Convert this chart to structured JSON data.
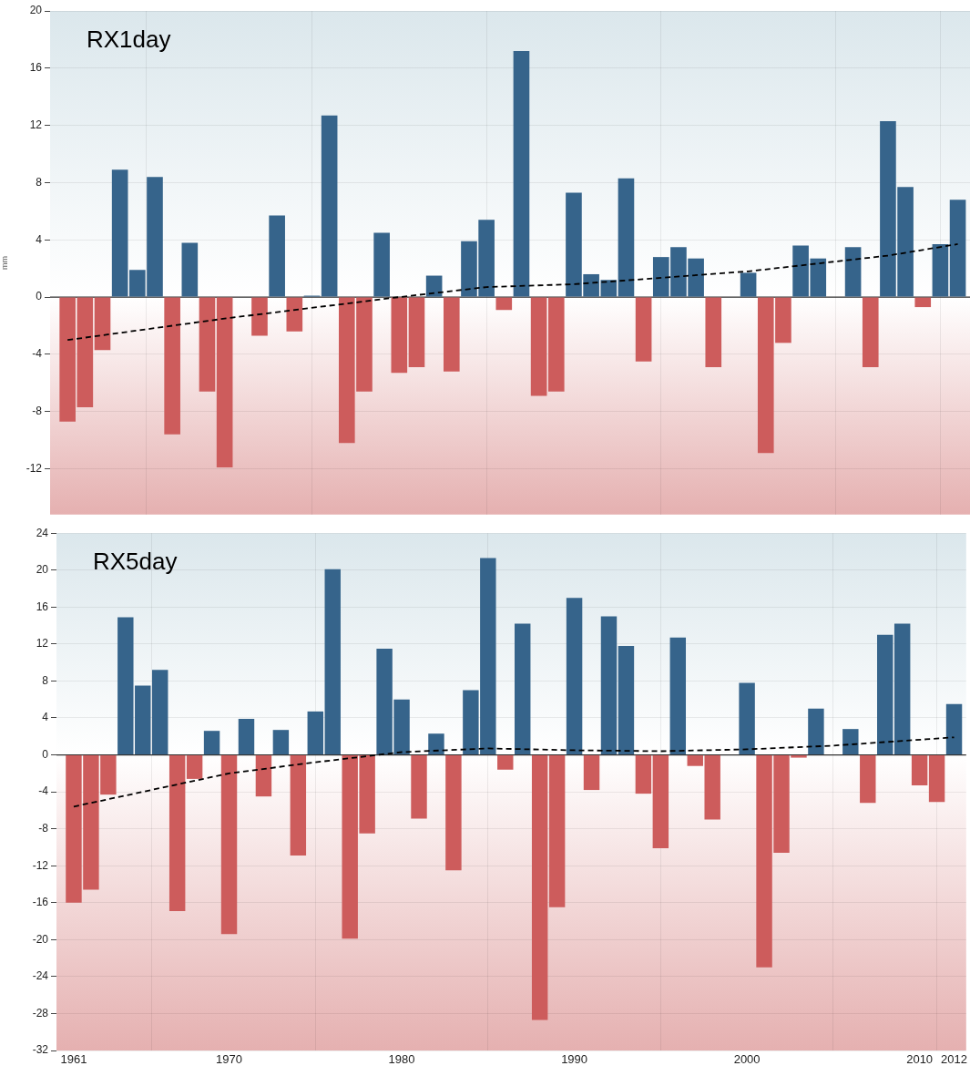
{
  "chart_data": [
    {
      "type": "bar",
      "title": "RX1day",
      "ylabel": "mm",
      "x": [
        1961,
        1962,
        1963,
        1964,
        1965,
        1966,
        1967,
        1968,
        1969,
        1970,
        1971,
        1972,
        1973,
        1974,
        1975,
        1976,
        1977,
        1978,
        1979,
        1980,
        1981,
        1982,
        1983,
        1984,
        1985,
        1986,
        1987,
        1988,
        1989,
        1990,
        1991,
        1992,
        1993,
        1994,
        1995,
        1996,
        1997,
        1998,
        1999,
        2000,
        2001,
        2002,
        2003,
        2004,
        2005,
        2006,
        2007,
        2008,
        2009,
        2010,
        2011,
        2012
      ],
      "series": [
        {
          "values": [
            -8.7,
            -7.7,
            -3.7,
            8.9,
            1.9,
            8.4,
            -9.6,
            3.8,
            -6.6,
            -11.9,
            null,
            -2.7,
            5.7,
            -2.4,
            0.1,
            12.7,
            -10.2,
            -6.6,
            4.5,
            -5.3,
            -4.9,
            1.5,
            -5.2,
            3.9,
            5.4,
            -0.9,
            17.2,
            -6.9,
            -6.6,
            7.3,
            1.6,
            1.2,
            8.3,
            -4.5,
            2.8,
            3.5,
            2.7,
            -4.9,
            null,
            1.7,
            -10.9,
            -3.2,
            3.6,
            2.7,
            null,
            3.5,
            -4.9,
            12.3,
            7.7,
            -0.7,
            3.7,
            6.8
          ],
          "colors": [
            "#cd5c5c",
            "#cd5c5c",
            "#cd5c5c",
            "#36648b",
            "#36648b",
            "#36648b",
            "#cd5c5c",
            "#36648b",
            "#cd5c5c",
            "#cd5c5c",
            "#36648b",
            "#cd5c5c",
            "#36648b",
            "#cd5c5c",
            "#36648b",
            "#36648b",
            "#cd5c5c",
            "#cd5c5c",
            "#36648b",
            "#cd5c5c",
            "#cd5c5c",
            "#36648b",
            "#cd5c5c",
            "#36648b",
            "#36648b",
            "#cd5c5c",
            "#36648b",
            "#cd5c5c",
            "#cd5c5c",
            "#36648b",
            "#36648b",
            "#36648b",
            "#36648b",
            "#cd5c5c",
            "#36648b",
            "#36648b",
            "#36648b",
            "#cd5c5c",
            "#36648b",
            "#36648b",
            "#cd5c5c",
            "#cd5c5c",
            "#36648b",
            "#36648b",
            "#36648b",
            "#36648b",
            "#cd5c5c",
            "#36648b",
            "#36648b",
            "#cd5c5c",
            "#36648b",
            "#36648b"
          ]
        },
        {
          "type": "line",
          "x": [
            1961,
            1970,
            1980,
            1985,
            1990,
            2000,
            2008,
            2012
          ],
          "values": [
            -3.0,
            -1.5,
            0.0,
            0.7,
            0.9,
            1.8,
            2.9,
            3.7
          ],
          "color": "#000000",
          "line_style": "dashed"
        }
      ],
      "xlim": [
        1960,
        2012.7
      ],
      "xticks": [
        1961,
        1970,
        1980,
        1990,
        2000,
        2010,
        2012
      ],
      "ylim": [
        -15.2,
        20
      ],
      "yticks": [
        -12,
        -8,
        -4,
        0,
        4,
        8,
        12,
        16,
        20
      ],
      "ref_lines": [
        {
          "axis": "y",
          "value": 0,
          "color": "#333333"
        }
      ],
      "grid": true,
      "tick_labels": "y"
    },
    {
      "type": "bar",
      "title": "RX5day",
      "x": [
        1961,
        1962,
        1963,
        1964,
        1965,
        1966,
        1967,
        1968,
        1969,
        1970,
        1971,
        1972,
        1973,
        1974,
        1975,
        1976,
        1977,
        1978,
        1979,
        1980,
        1981,
        1982,
        1983,
        1984,
        1985,
        1986,
        1987,
        1988,
        1989,
        1990,
        1991,
        1992,
        1993,
        1994,
        1995,
        1996,
        1997,
        1998,
        1999,
        2000,
        2001,
        2002,
        2003,
        2004,
        2005,
        2006,
        2007,
        2008,
        2009,
        2010,
        2011,
        2012
      ],
      "series": [
        {
          "values": [
            -16.0,
            -14.6,
            -4.3,
            14.9,
            7.5,
            9.2,
            -16.9,
            -2.6,
            2.6,
            -19.4,
            3.9,
            -4.5,
            2.7,
            -10.9,
            4.7,
            20.1,
            -19.9,
            -8.5,
            11.5,
            6.0,
            -6.9,
            2.3,
            -12.5,
            7.0,
            21.3,
            -1.6,
            14.2,
            -28.7,
            -16.5,
            17.0,
            -3.8,
            15.0,
            11.8,
            -4.2,
            -10.1,
            12.7,
            -1.2,
            -7.0,
            null,
            7.8,
            -23.0,
            -10.6,
            -0.3,
            5.0,
            null,
            2.8,
            -5.2,
            13.0,
            14.2,
            -3.3,
            -5.1,
            5.5
          ],
          "colors": [
            "#cd5c5c",
            "#cd5c5c",
            "#cd5c5c",
            "#36648b",
            "#36648b",
            "#36648b",
            "#cd5c5c",
            "#cd5c5c",
            "#36648b",
            "#cd5c5c",
            "#36648b",
            "#cd5c5c",
            "#36648b",
            "#cd5c5c",
            "#36648b",
            "#36648b",
            "#cd5c5c",
            "#cd5c5c",
            "#36648b",
            "#36648b",
            "#cd5c5c",
            "#36648b",
            "#cd5c5c",
            "#36648b",
            "#36648b",
            "#cd5c5c",
            "#36648b",
            "#cd5c5c",
            "#cd5c5c",
            "#36648b",
            "#cd5c5c",
            "#36648b",
            "#36648b",
            "#cd5c5c",
            "#cd5c5c",
            "#36648b",
            "#cd5c5c",
            "#cd5c5c",
            "#36648b",
            "#36648b",
            "#cd5c5c",
            "#cd5c5c",
            "#cd5c5c",
            "#36648b",
            "#36648b",
            "#36648b",
            "#cd5c5c",
            "#36648b",
            "#36648b",
            "#cd5c5c",
            "#cd5c5c",
            "#36648b"
          ]
        },
        {
          "type": "line",
          "x": [
            1961,
            1970,
            1975,
            1980,
            1985,
            1990,
            1995,
            2000,
            2005,
            2012
          ],
          "values": [
            -5.6,
            -2.0,
            -0.8,
            0.3,
            0.7,
            0.5,
            0.4,
            0.6,
            1.0,
            1.9
          ],
          "color": "#000000",
          "line_style": "dashed"
        }
      ],
      "xlim": [
        1960,
        2012.7
      ],
      "xticks": [
        1961,
        1970,
        1980,
        1990,
        2000,
        2010,
        2012
      ],
      "ylim": [
        -32,
        24
      ],
      "yticks": [
        -32,
        -28,
        -24,
        -20,
        -16,
        -12,
        -8,
        -4,
        0,
        4,
        8,
        12,
        16,
        20,
        24
      ],
      "ref_lines": [
        {
          "axis": "y",
          "value": 0,
          "color": "#333333"
        }
      ],
      "grid": true
    }
  ]
}
